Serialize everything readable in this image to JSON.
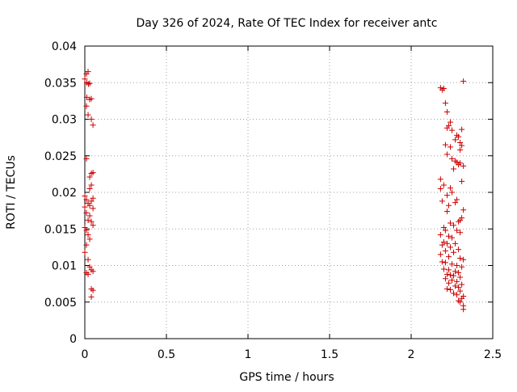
{
  "chart_data": {
    "type": "scatter",
    "title": "Day 326 of 2024, Rate Of TEC Index for receiver antc",
    "xlabel": "GPS time / hours",
    "ylabel": "ROTI / TECUs",
    "xlim": [
      0,
      2.5
    ],
    "ylim": [
      0,
      0.04
    ],
    "x_ticks": [
      0,
      0.5,
      1,
      1.5,
      2,
      2.5
    ],
    "x_tick_labels": [
      "0",
      "0.5",
      "1",
      "1.5",
      "2",
      "2.5"
    ],
    "y_ticks": [
      0,
      0.005,
      0.01,
      0.015,
      0.02,
      0.025,
      0.03,
      0.035,
      0.04
    ],
    "y_tick_labels": [
      "0",
      "0.005",
      "0.01",
      "0.015",
      "0.02",
      "0.025",
      "0.03",
      "0.035",
      "0.04"
    ],
    "grid": true,
    "marker": "plus",
    "color": "#cc0000",
    "series": [
      {
        "points": [
          [
            0.0,
            0.0355
          ],
          [
            0.01,
            0.0362
          ],
          [
            0.012,
            0.035
          ],
          [
            0.02,
            0.0365
          ],
          [
            0.022,
            0.0348
          ],
          [
            0.03,
            0.0349
          ],
          [
            0.012,
            0.033
          ],
          [
            0.03,
            0.0327
          ],
          [
            0.04,
            0.0328
          ],
          [
            0.01,
            0.0318
          ],
          [
            0.02,
            0.0306
          ],
          [
            0.04,
            0.03
          ],
          [
            0.05,
            0.0292
          ],
          [
            0.01,
            0.0246
          ],
          [
            0.04,
            0.0226
          ],
          [
            0.05,
            0.0227
          ],
          [
            0.03,
            0.0221
          ],
          [
            0.04,
            0.021
          ],
          [
            0.03,
            0.0205
          ],
          [
            0.0,
            0.0195
          ],
          [
            0.01,
            0.019
          ],
          [
            0.02,
            0.0185
          ],
          [
            0.0,
            0.018
          ],
          [
            0.03,
            0.0182
          ],
          [
            0.05,
            0.0192
          ],
          [
            0.04,
            0.0188
          ],
          [
            0.05,
            0.0178
          ],
          [
            0.01,
            0.0172
          ],
          [
            0.03,
            0.0168
          ],
          [
            0.02,
            0.0162
          ],
          [
            0.04,
            0.016
          ],
          [
            0.05,
            0.0155
          ],
          [
            0.0,
            0.0152
          ],
          [
            0.01,
            0.0148
          ],
          [
            0.02,
            0.0142
          ],
          [
            0.03,
            0.0136
          ],
          [
            0.01,
            0.0128
          ],
          [
            0.0,
            0.0118
          ],
          [
            0.02,
            0.0108
          ],
          [
            0.03,
            0.0098
          ],
          [
            0.04,
            0.0094
          ],
          [
            0.05,
            0.0092
          ],
          [
            0.01,
            0.009
          ],
          [
            0.02,
            0.0088
          ],
          [
            0.04,
            0.0068
          ],
          [
            0.05,
            0.0066
          ],
          [
            0.04,
            0.0057
          ]
        ]
      },
      {
        "points": [
          [
            2.32,
            0.0352
          ],
          [
            2.18,
            0.0343
          ],
          [
            2.2,
            0.0342
          ],
          [
            2.19,
            0.034
          ],
          [
            2.21,
            0.0322
          ],
          [
            2.22,
            0.031
          ],
          [
            2.24,
            0.0296
          ],
          [
            2.23,
            0.0291
          ],
          [
            2.22,
            0.0288
          ],
          [
            2.25,
            0.0285
          ],
          [
            2.31,
            0.0286
          ],
          [
            2.28,
            0.0278
          ],
          [
            2.29,
            0.0276
          ],
          [
            2.27,
            0.0272
          ],
          [
            2.21,
            0.0265
          ],
          [
            2.24,
            0.0262
          ],
          [
            2.3,
            0.0268
          ],
          [
            2.31,
            0.0264
          ],
          [
            2.3,
            0.0258
          ],
          [
            2.22,
            0.0252
          ],
          [
            2.25,
            0.0246
          ],
          [
            2.27,
            0.0243
          ],
          [
            2.28,
            0.0241
          ],
          [
            2.3,
            0.024
          ],
          [
            2.29,
            0.0238
          ],
          [
            2.32,
            0.0236
          ],
          [
            2.26,
            0.0232
          ],
          [
            2.18,
            0.0218
          ],
          [
            2.31,
            0.0215
          ],
          [
            2.2,
            0.021
          ],
          [
            2.24,
            0.0206
          ],
          [
            2.25,
            0.02
          ],
          [
            2.18,
            0.0205
          ],
          [
            2.22,
            0.0196
          ],
          [
            2.19,
            0.0188
          ],
          [
            2.23,
            0.0182
          ],
          [
            2.28,
            0.019
          ],
          [
            2.27,
            0.0186
          ],
          [
            2.32,
            0.0176
          ],
          [
            2.22,
            0.0174
          ],
          [
            2.31,
            0.0165
          ],
          [
            2.3,
            0.0162
          ],
          [
            2.29,
            0.016
          ],
          [
            2.24,
            0.0158
          ],
          [
            2.26,
            0.0155
          ],
          [
            2.2,
            0.0152
          ],
          [
            2.21,
            0.0148
          ],
          [
            2.28,
            0.0148
          ],
          [
            2.3,
            0.0145
          ],
          [
            2.18,
            0.0142
          ],
          [
            2.23,
            0.014
          ],
          [
            2.25,
            0.0138
          ],
          [
            2.2,
            0.0132
          ],
          [
            2.22,
            0.013
          ],
          [
            2.19,
            0.0128
          ],
          [
            2.27,
            0.013
          ],
          [
            2.24,
            0.0125
          ],
          [
            2.21,
            0.012
          ],
          [
            2.29,
            0.0122
          ],
          [
            2.26,
            0.0118
          ],
          [
            2.18,
            0.0115
          ],
          [
            2.23,
            0.0112
          ],
          [
            2.3,
            0.011
          ],
          [
            2.32,
            0.0108
          ],
          [
            2.19,
            0.0105
          ],
          [
            2.21,
            0.0104
          ],
          [
            2.25,
            0.0102
          ],
          [
            2.28,
            0.01
          ],
          [
            2.31,
            0.0098
          ],
          [
            2.2,
            0.0095
          ],
          [
            2.23,
            0.0094
          ],
          [
            2.27,
            0.0092
          ],
          [
            2.29,
            0.009
          ],
          [
            2.22,
            0.0088
          ],
          [
            2.24,
            0.0087
          ],
          [
            2.26,
            0.0086
          ],
          [
            2.3,
            0.0084
          ],
          [
            2.21,
            0.0082
          ],
          [
            2.25,
            0.008
          ],
          [
            2.28,
            0.0078
          ],
          [
            2.23,
            0.0076
          ],
          [
            2.31,
            0.0074
          ],
          [
            2.27,
            0.0072
          ],
          [
            2.29,
            0.007
          ],
          [
            2.22,
            0.0068
          ],
          [
            2.24,
            0.0067
          ],
          [
            2.3,
            0.0065
          ],
          [
            2.26,
            0.0062
          ],
          [
            2.28,
            0.006
          ],
          [
            2.32,
            0.0058
          ],
          [
            2.31,
            0.0055
          ],
          [
            2.29,
            0.0052
          ],
          [
            2.3,
            0.005
          ],
          [
            2.32,
            0.0045
          ],
          [
            2.32,
            0.004
          ]
        ]
      }
    ]
  }
}
